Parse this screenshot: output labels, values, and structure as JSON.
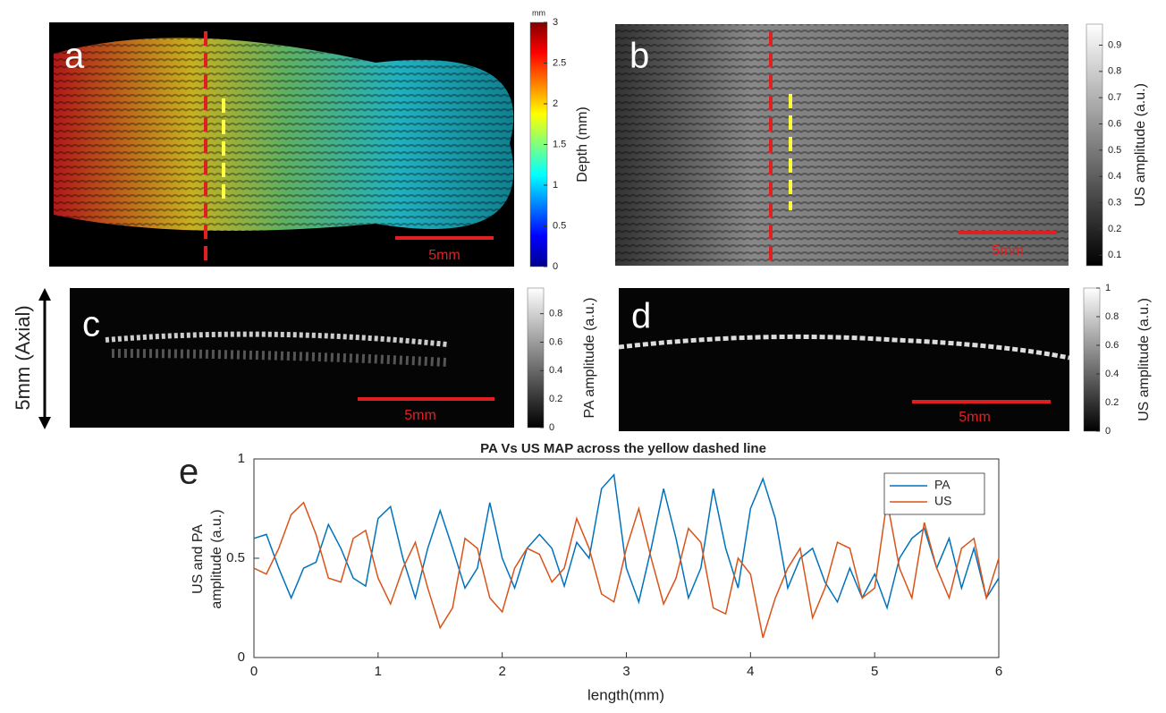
{
  "panels": {
    "a": {
      "label": "a",
      "scale_bar": "5mm",
      "colorbar": {
        "unit": "mm",
        "label": "Depth (mm)",
        "lim": [
          0,
          3
        ],
        "ticks": [
          0,
          0.5,
          1,
          1.5,
          2,
          2.5,
          3
        ]
      }
    },
    "b": {
      "label": "b",
      "scale_bar": "5mm",
      "colorbar": {
        "label": "US amplitude (a.u.)",
        "lim": [
          0.06,
          0.98
        ],
        "ticks": [
          0.1,
          0.2,
          0.3,
          0.4,
          0.5,
          0.6,
          0.7,
          0.8,
          0.9
        ]
      }
    },
    "c": {
      "label": "c",
      "scale_bar": "5mm",
      "axial_label": "5mm (Axial)",
      "colorbar": {
        "label": "PA amplitude (a.u.)",
        "lim": [
          0,
          0.98
        ],
        "ticks": [
          0,
          0.2,
          0.4,
          0.6,
          0.8
        ]
      }
    },
    "d": {
      "label": "d",
      "scale_bar": "5mm",
      "colorbar": {
        "label": "US amplitude (a.u.)",
        "lim": [
          0,
          1
        ],
        "ticks": [
          0,
          0.2,
          0.4,
          0.6,
          0.8,
          1
        ]
      }
    }
  },
  "chart_data": {
    "type": "line",
    "panel_label": "e",
    "title": "PA Vs US MAP across the yellow dashed line",
    "xlabel": "length(mm)",
    "ylabel": [
      "US and PA",
      "amplitude (a.u.)"
    ],
    "xlim": [
      0,
      6
    ],
    "ylim": [
      0,
      1
    ],
    "xticks": [
      0,
      1,
      2,
      3,
      4,
      5,
      6
    ],
    "yticks": [
      0,
      0.5,
      1
    ],
    "legend": "upper right",
    "x": [
      0,
      0.1,
      0.2,
      0.3,
      0.4,
      0.5,
      0.6,
      0.7,
      0.8,
      0.9,
      1,
      1.1,
      1.2,
      1.3,
      1.4,
      1.5,
      1.6,
      1.7,
      1.8,
      1.9,
      2,
      2.1,
      2.2,
      2.3,
      2.4,
      2.5,
      2.6,
      2.7,
      2.8,
      2.9,
      3,
      3.1,
      3.2,
      3.3,
      3.4,
      3.5,
      3.6,
      3.7,
      3.8,
      3.9,
      4,
      4.1,
      4.2,
      4.3,
      4.4,
      4.5,
      4.6,
      4.7,
      4.8,
      4.9,
      5,
      5.1,
      5.2,
      5.3,
      5.4,
      5.5,
      5.6,
      5.7,
      5.8,
      5.9,
      6
    ],
    "series": [
      {
        "name": "PA",
        "color": "#0072bd",
        "values": [
          0.6,
          0.62,
          0.45,
          0.3,
          0.45,
          0.48,
          0.67,
          0.55,
          0.4,
          0.36,
          0.7,
          0.76,
          0.5,
          0.3,
          0.55,
          0.74,
          0.55,
          0.35,
          0.45,
          0.78,
          0.5,
          0.35,
          0.55,
          0.62,
          0.55,
          0.36,
          0.58,
          0.5,
          0.85,
          0.92,
          0.45,
          0.28,
          0.55,
          0.85,
          0.6,
          0.3,
          0.45,
          0.85,
          0.55,
          0.35,
          0.75,
          0.9,
          0.7,
          0.35,
          0.5,
          0.55,
          0.38,
          0.28,
          0.45,
          0.3,
          0.42,
          0.25,
          0.5,
          0.6,
          0.65,
          0.45,
          0.6,
          0.35,
          0.55,
          0.3,
          0.4
        ]
      },
      {
        "name": "US",
        "color": "#d95319",
        "values": [
          0.45,
          0.42,
          0.55,
          0.72,
          0.78,
          0.62,
          0.4,
          0.38,
          0.6,
          0.64,
          0.4,
          0.27,
          0.45,
          0.58,
          0.35,
          0.15,
          0.25,
          0.6,
          0.55,
          0.3,
          0.23,
          0.45,
          0.55,
          0.52,
          0.38,
          0.45,
          0.7,
          0.55,
          0.32,
          0.28,
          0.55,
          0.75,
          0.5,
          0.27,
          0.4,
          0.65,
          0.58,
          0.25,
          0.22,
          0.5,
          0.42,
          0.1,
          0.3,
          0.45,
          0.55,
          0.2,
          0.35,
          0.58,
          0.55,
          0.3,
          0.35,
          0.79,
          0.45,
          0.3,
          0.68,
          0.45,
          0.3,
          0.55,
          0.6,
          0.3,
          0.5
        ]
      }
    ]
  }
}
